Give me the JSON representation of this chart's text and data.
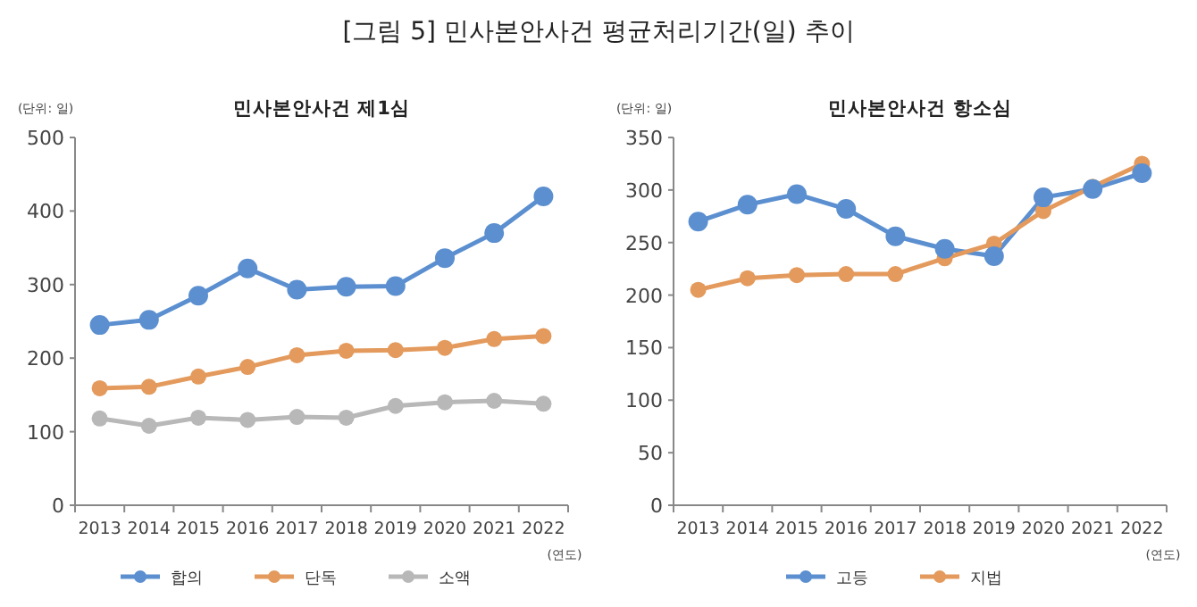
{
  "chart_data": [
    {
      "type": "other",
      "title": "[그림 5]  민사본안사건 평균처리기간(일) 추이"
    },
    {
      "type": "line",
      "title": "민사본안사건 제1심",
      "annotations": [
        "(단위: 일)",
        "(연도)"
      ],
      "categories": [
        "2013",
        "2014",
        "2015",
        "2016",
        "2017",
        "2018",
        "2019",
        "2020",
        "2021",
        "2022"
      ],
      "series": [
        {
          "name": "합의",
          "color": "#5b8fd0",
          "values": [
            245,
            252,
            285,
            322,
            293,
            297,
            298,
            336,
            370,
            420
          ]
        },
        {
          "name": "단독",
          "color": "#e39a5c",
          "values": [
            159,
            161,
            175,
            188,
            204,
            210,
            211,
            214,
            226,
            230
          ]
        },
        {
          "name": "소액",
          "color": "#b8b8b8",
          "values": [
            118,
            108,
            119,
            116,
            120,
            119,
            135,
            140,
            142,
            138
          ]
        }
      ],
      "ylim": [
        0,
        500
      ],
      "yticks": [
        0,
        100,
        200,
        300,
        400,
        500
      ],
      "legend": "bottom",
      "marker": "circle",
      "grid": false
    },
    {
      "type": "line",
      "title": "민사본안사건 항소심",
      "annotations": [
        "(단위: 일)",
        "(연도)"
      ],
      "categories": [
        "2013",
        "2014",
        "2015",
        "2016",
        "2017",
        "2018",
        "2019",
        "2020",
        "2021",
        "2022"
      ],
      "series": [
        {
          "name": "고등",
          "color": "#5b8fd0",
          "values": [
            270,
            286,
            296,
            282,
            256,
            244,
            237,
            293,
            301,
            316
          ]
        },
        {
          "name": "지법",
          "color": "#e39a5c",
          "values": [
            205,
            216,
            219,
            220,
            220,
            235,
            249,
            280,
            303,
            325
          ]
        }
      ],
      "ylim": [
        0,
        350
      ],
      "yticks": [
        0,
        50,
        100,
        150,
        200,
        250,
        300,
        350
      ],
      "legend": "bottom",
      "marker": "circle",
      "grid": false
    }
  ]
}
